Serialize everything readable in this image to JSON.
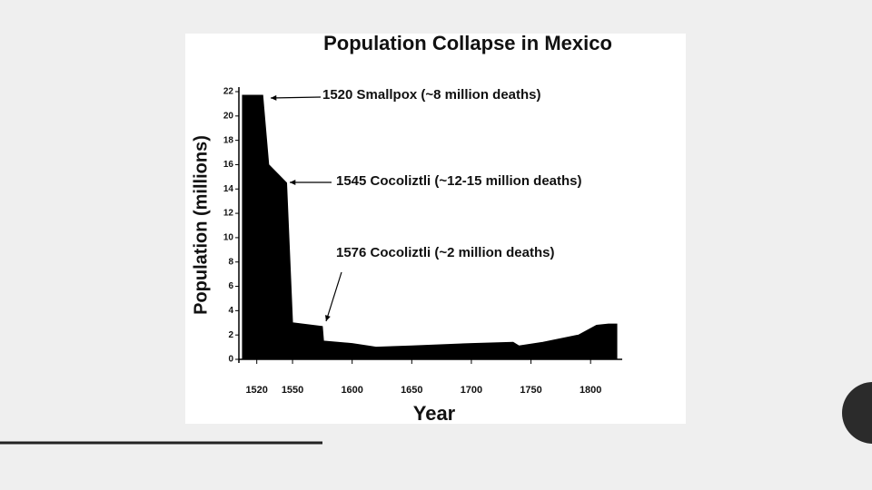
{
  "chart_data": {
    "type": "area",
    "title": "Population Collapse in Mexico",
    "x_label": "Year",
    "y_label": "Population (millions)",
    "x": [
      1508,
      1520,
      1525,
      1530,
      1540,
      1545,
      1550,
      1575,
      1576,
      1600,
      1620,
      1650,
      1700,
      1735,
      1740,
      1760,
      1790,
      1805,
      1815,
      1822
    ],
    "values": [
      21.7,
      21.7,
      21.7,
      16,
      15,
      14.5,
      3,
      2.7,
      1.5,
      1.3,
      1.0,
      1.1,
      1.3,
      1.4,
      1.1,
      1.4,
      2.0,
      2.8,
      2.9,
      2.9
    ],
    "color": "#000000",
    "xlim": [
      1505,
      1825
    ],
    "ylim": [
      0,
      22
    ],
    "xticks": [
      1520,
      1550,
      1600,
      1650,
      1700,
      1750,
      1800
    ],
    "yticks": [
      0,
      2,
      4,
      6,
      8,
      10,
      12,
      14,
      16,
      18,
      20,
      22
    ],
    "annotations": [
      "1520  Smallpox (~8 million deaths)",
      "1545  Cocoliztli (~12-15 million deaths)",
      "1576  Cocoliztli (~2 million deaths)"
    ]
  }
}
